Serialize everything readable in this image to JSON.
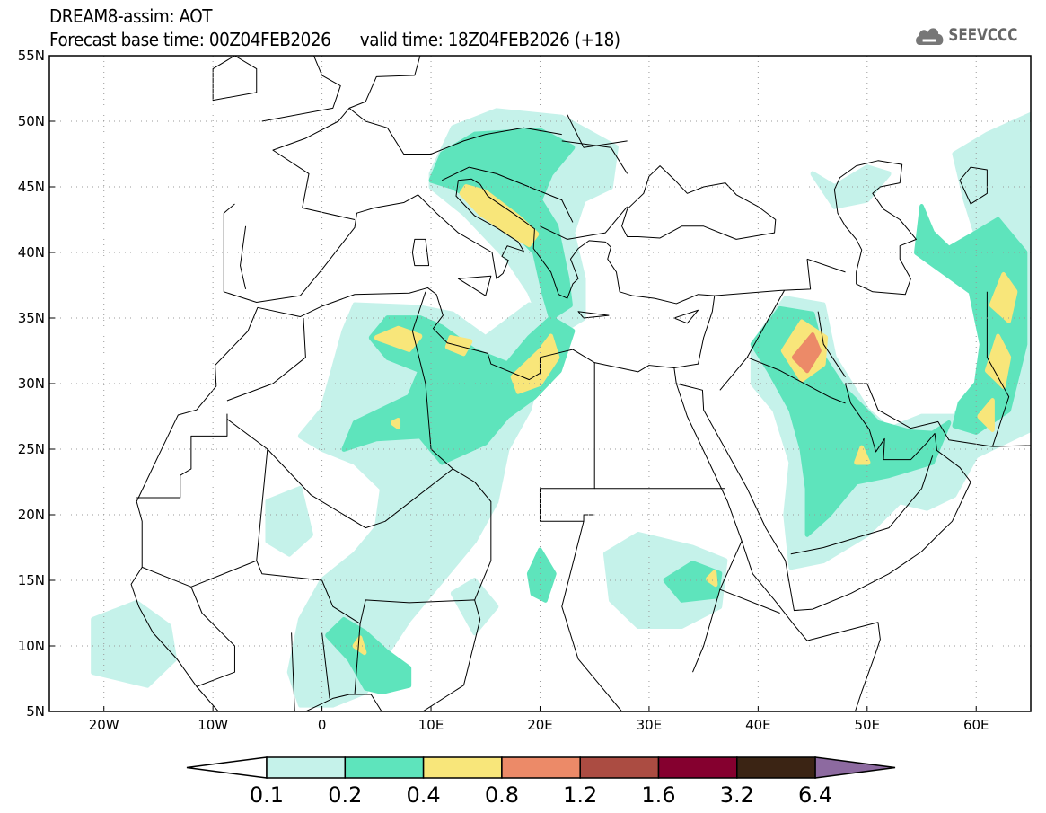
{
  "header": {
    "title": "DREAM8-assim: AOT",
    "base_time": "Forecast base time: 00Z04FEB2026",
    "valid_time": "valid time: 18Z04FEB2026 (+18)"
  },
  "logo": {
    "text": "SEEVCCC",
    "icon": "cloud-icon"
  },
  "map": {
    "lon_range": [
      -25,
      65
    ],
    "lat_range": [
      5,
      55
    ],
    "lon_ticks": [
      {
        "label": "20W",
        "value": -20
      },
      {
        "label": "10W",
        "value": -10
      },
      {
        "label": "0",
        "value": 0
      },
      {
        "label": "10E",
        "value": 10
      },
      {
        "label": "20E",
        "value": 20
      },
      {
        "label": "30E",
        "value": 30
      },
      {
        "label": "40E",
        "value": 40
      },
      {
        "label": "50E",
        "value": 50
      },
      {
        "label": "60E",
        "value": 60
      }
    ],
    "lat_ticks": [
      {
        "label": "5N",
        "value": 5
      },
      {
        "label": "10N",
        "value": 10
      },
      {
        "label": "15N",
        "value": 15
      },
      {
        "label": "20N",
        "value": 20
      },
      {
        "label": "25N",
        "value": 25
      },
      {
        "label": "30N",
        "value": 30
      },
      {
        "label": "35N",
        "value": 35
      },
      {
        "label": "40N",
        "value": 40
      },
      {
        "label": "45N",
        "value": 45
      },
      {
        "label": "50N",
        "value": 50
      },
      {
        "label": "55N",
        "value": 55
      }
    ]
  },
  "colorbar": {
    "labels": [
      "0.1",
      "0.2",
      "0.4",
      "0.8",
      "1.2",
      "1.6",
      "3.2",
      "6.4"
    ],
    "below_color": "#ffffff",
    "colors": [
      "#c5f2ea",
      "#5ee4bc",
      "#f8e67a",
      "#ec8a68",
      "#ab4c42",
      "#85002f",
      "#3b2414"
    ],
    "above_color": "#8d6aa0"
  }
}
